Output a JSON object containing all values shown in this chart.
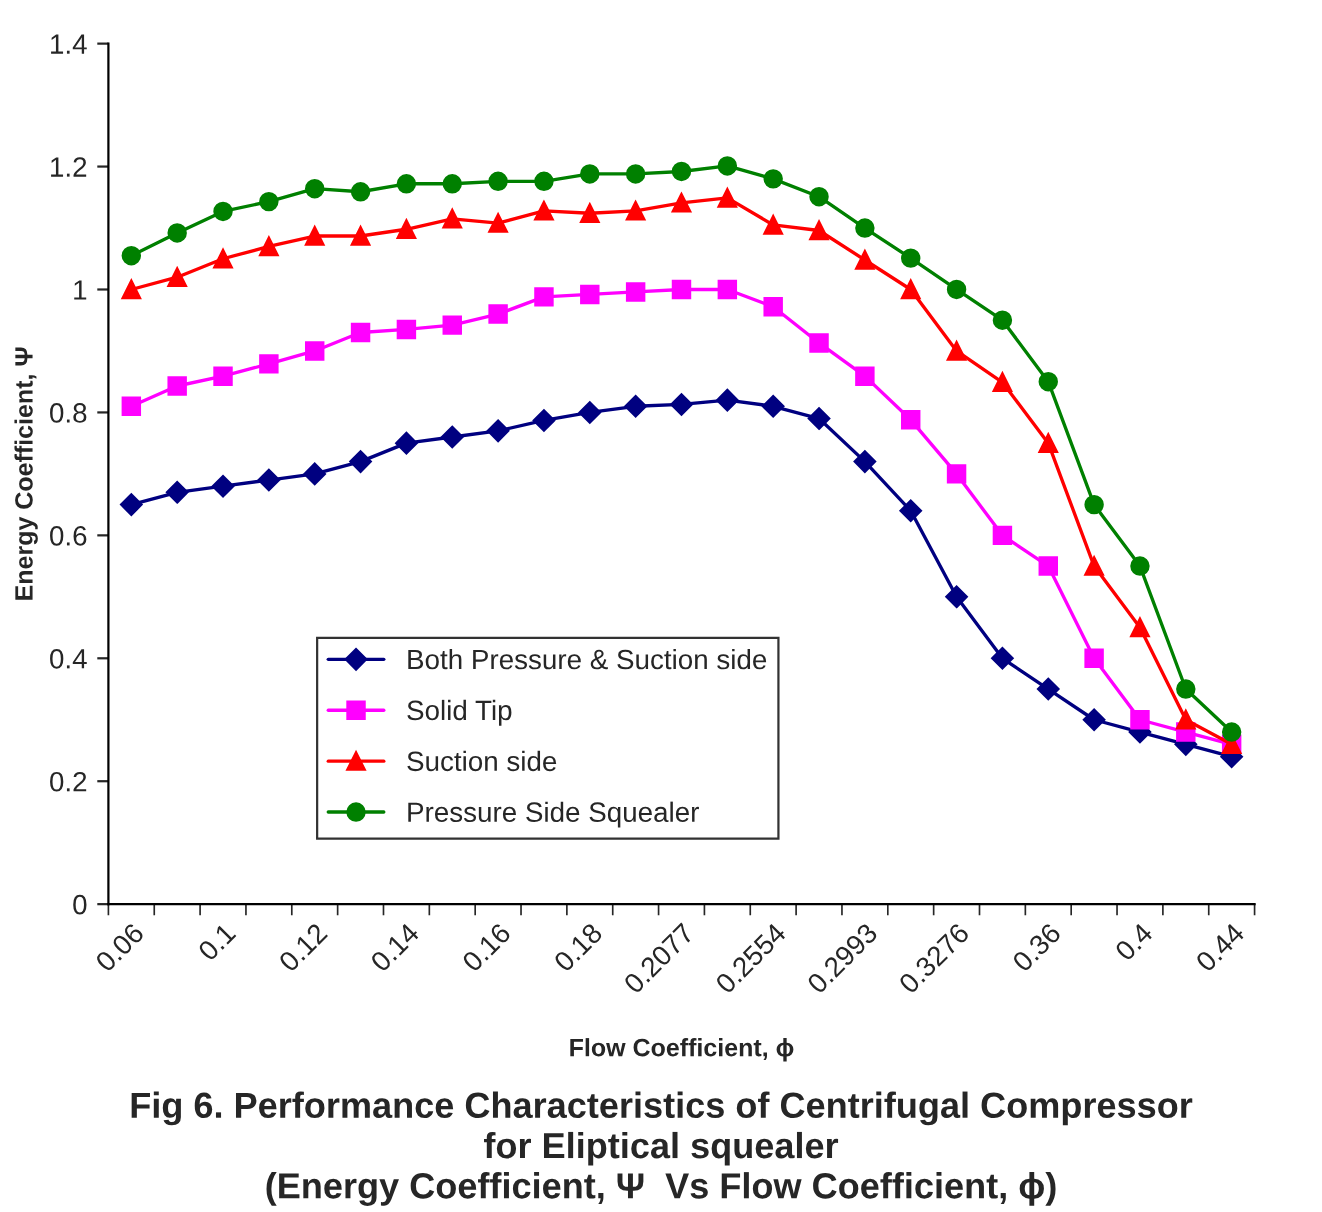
{
  "chart_data": {
    "type": "line",
    "title": "Fig 6. Performance Characteristics of Centrifugal Compressor\nfor Eliptical squealer\n(Energy Coefficient, Ψ  Vs Flow Coefficient, ϕ)",
    "xlabel": "Flow Coefficient, ϕ",
    "ylabel": "Energy Coefficient, Ψ",
    "categories": [
      "0.06",
      null,
      "0.1",
      null,
      "0.12",
      null,
      "0.14",
      null,
      "0.16",
      null,
      "0.18",
      null,
      "0.2077",
      null,
      "0.2554",
      null,
      "0.2993",
      null,
      "0.3276",
      null,
      "0.36",
      null,
      "0.4",
      null,
      "0.44"
    ],
    "series": [
      {
        "name": "Both Pressure & Suction side",
        "color": "#000080",
        "marker": "diamond",
        "values": [
          0.65,
          0.67,
          0.68,
          0.69,
          0.7,
          0.72,
          0.75,
          0.76,
          0.77,
          0.787,
          0.8,
          0.81,
          0.813,
          0.82,
          0.81,
          0.79,
          0.72,
          0.64,
          0.5,
          0.4,
          0.35,
          0.3,
          0.28,
          0.26,
          0.24
        ]
      },
      {
        "name": "Solid Tip",
        "color": "#ff00ff",
        "marker": "square",
        "values": [
          0.81,
          0.843,
          0.859,
          0.879,
          0.9,
          0.93,
          0.935,
          0.942,
          0.96,
          0.988,
          0.992,
          0.996,
          1.0,
          1.0,
          0.972,
          0.913,
          0.859,
          0.788,
          0.7,
          0.6,
          0.55,
          0.4,
          0.3,
          0.28,
          0.26
        ]
      },
      {
        "name": "Suction side",
        "color": "#ff0000",
        "marker": "triangle",
        "values": [
          1.0,
          1.02,
          1.05,
          1.07,
          1.087,
          1.087,
          1.098,
          1.115,
          1.108,
          1.128,
          1.124,
          1.128,
          1.141,
          1.149,
          1.105,
          1.096,
          1.048,
          1.0,
          0.9,
          0.849,
          0.75,
          0.55,
          0.45,
          0.3,
          0.26
        ]
      },
      {
        "name": "Pressure Side Squealer",
        "color": "#008000",
        "marker": "circle",
        "values": [
          1.055,
          1.092,
          1.127,
          1.143,
          1.164,
          1.159,
          1.172,
          1.172,
          1.176,
          1.176,
          1.188,
          1.188,
          1.192,
          1.201,
          1.18,
          1.151,
          1.1,
          1.051,
          1.0,
          0.95,
          0.85,
          0.65,
          0.55,
          0.35,
          0.28
        ]
      }
    ],
    "ylim": [
      0,
      1.4
    ],
    "yticks": [
      0,
      0.2,
      0.4,
      0.6,
      0.8,
      1,
      1.2,
      1.4
    ],
    "grid": false,
    "legend": "lower left",
    "line_style": "solid"
  }
}
